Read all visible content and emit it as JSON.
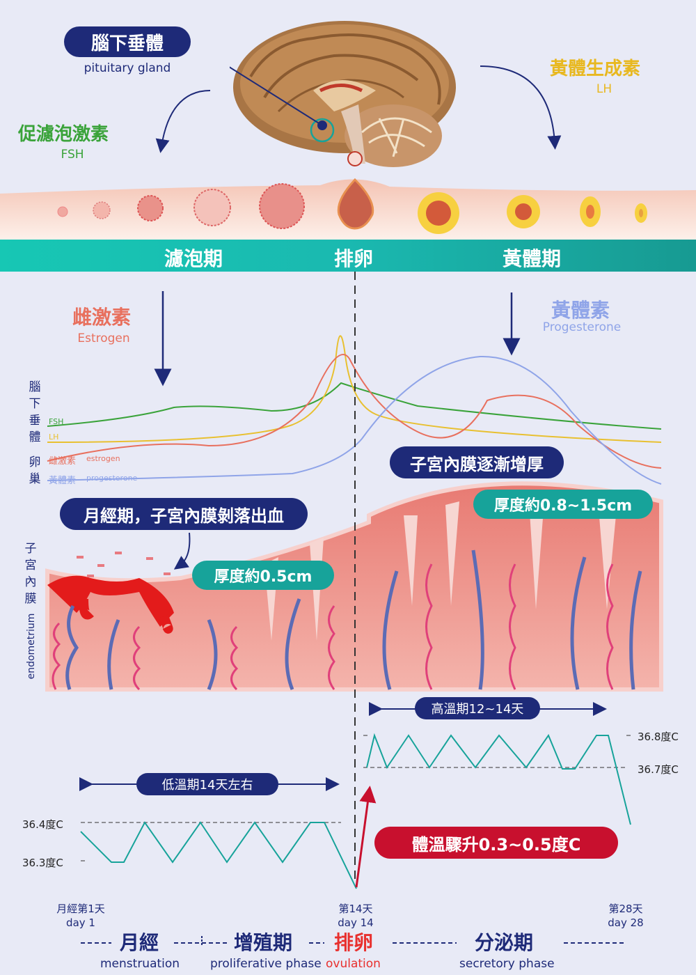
{
  "pituitary": {
    "label_zh": "腦下垂體",
    "label_en": "pituitary gland"
  },
  "fsh": {
    "label_zh": "促濾泡激素",
    "label_en": "FSH"
  },
  "lh": {
    "label_zh": "黃體生成素",
    "label_en": "LH"
  },
  "phases": {
    "follicular": "濾泡期",
    "ovulation": "排卵",
    "luteal": "黃體期"
  },
  "estrogen": {
    "label_zh": "雌激素",
    "label_en": "Estrogen"
  },
  "progesterone": {
    "label_zh": "黃體素",
    "label_en": "Progesterone"
  },
  "side_labels": {
    "pituitary_vertical": [
      "腦",
      "下",
      "垂",
      "體"
    ],
    "ovary_vertical": [
      "卵",
      "巢"
    ],
    "uterus_vertical": [
      "子",
      "宮",
      "內",
      "膜"
    ],
    "endometrium_en": "endometrium"
  },
  "legend": {
    "fsh": "FSH",
    "lh": "LH",
    "estrogen_zh": "雌激素",
    "estrogen_en": "estrogen",
    "progesterone_zh": "黃體素",
    "progesterone_en": "progesterone"
  },
  "callouts": {
    "menstruation_desc": "月經期，子宮內膜剝落出血",
    "thickness_early": "厚度約0.5cm",
    "thickening": "子宮內膜逐漸增厚",
    "thickness_late": "厚度約0.8~1.5cm",
    "high_temp": "高溫期12~14天",
    "low_temp": "低溫期14天左右",
    "temp_rise": "體溫驟升0.3~0.5度C"
  },
  "temps": {
    "t368": "36.8度C",
    "t367": "36.7度C",
    "t364": "36.4度C",
    "t363": "36.3度C"
  },
  "days": {
    "d1_zh": "月經第1天",
    "d1_en": "day 1",
    "d14_zh": "第14天",
    "d14_en": "day 14",
    "d28_zh": "第28天",
    "d28_en": "day 28"
  },
  "bottom_phases": {
    "menstruation_zh": "月經",
    "menstruation_en": "menstruation",
    "proliferative_zh": "增殖期",
    "proliferative_en": "proliferative phase",
    "ovulation_zh": "排卵",
    "ovulation_en": "ovulation",
    "secretory_zh": "分泌期",
    "secretory_en": "secretory phase"
  },
  "colors": {
    "navy": "#1e2a78",
    "teal": "#17a39a",
    "red": "#c8102e",
    "fsh": "#3aa33a",
    "lh": "#e8c030",
    "estrogen": "#e8705e",
    "progesterone": "#8fa4e8"
  }
}
